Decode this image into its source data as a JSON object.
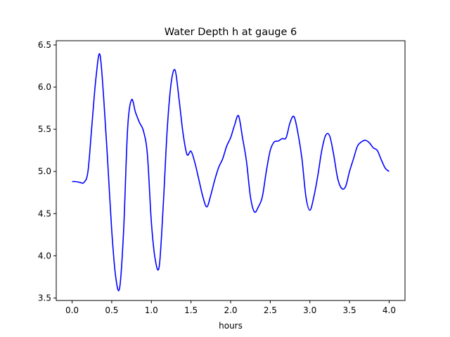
{
  "chart_data": {
    "type": "line",
    "title": "Water Depth h at gauge 6",
    "xlabel": "hours",
    "ylabel": "",
    "xlim": [
      -0.2,
      4.2
    ],
    "ylim": [
      3.47,
      6.55
    ],
    "grid": false,
    "x_ticks": [
      0.0,
      0.5,
      1.0,
      1.5,
      2.0,
      2.5,
      3.0,
      3.5,
      4.0
    ],
    "x_tick_labels": [
      "0.0",
      "0.5",
      "1.0",
      "1.5",
      "2.0",
      "2.5",
      "3.0",
      "3.5",
      "4.0"
    ],
    "y_ticks": [
      3.5,
      4.0,
      4.5,
      5.0,
      5.5,
      6.0,
      6.5
    ],
    "y_tick_labels": [
      "3.5",
      "4.0",
      "4.5",
      "5.0",
      "5.5",
      "6.0",
      "6.5"
    ],
    "series": [
      {
        "color": "#0000ff",
        "x": [
          0.0,
          0.05,
          0.1,
          0.15,
          0.2,
          0.25,
          0.3,
          0.35,
          0.4,
          0.45,
          0.5,
          0.55,
          0.6,
          0.65,
          0.7,
          0.75,
          0.8,
          0.85,
          0.9,
          0.95,
          1.0,
          1.05,
          1.1,
          1.15,
          1.2,
          1.25,
          1.3,
          1.35,
          1.4,
          1.45,
          1.5,
          1.55,
          1.6,
          1.65,
          1.7,
          1.75,
          1.8,
          1.85,
          1.9,
          1.95,
          2.0,
          2.05,
          2.1,
          2.15,
          2.2,
          2.25,
          2.3,
          2.35,
          2.4,
          2.45,
          2.5,
          2.55,
          2.6,
          2.65,
          2.7,
          2.75,
          2.8,
          2.85,
          2.9,
          2.95,
          3.0,
          3.05,
          3.1,
          3.15,
          3.2,
          3.25,
          3.3,
          3.35,
          3.4,
          3.45,
          3.5,
          3.55,
          3.6,
          3.65,
          3.7,
          3.75,
          3.8,
          3.85,
          3.9,
          3.95,
          4.0
        ],
        "y": [
          4.88,
          4.88,
          4.87,
          4.87,
          5.0,
          5.55,
          6.1,
          6.39,
          5.85,
          5.1,
          4.3,
          3.75,
          3.62,
          4.3,
          5.5,
          5.85,
          5.7,
          5.58,
          5.48,
          5.2,
          4.4,
          3.95,
          3.88,
          4.6,
          5.5,
          6.05,
          6.2,
          5.85,
          5.45,
          5.2,
          5.24,
          5.1,
          4.9,
          4.7,
          4.58,
          4.72,
          4.9,
          5.05,
          5.15,
          5.3,
          5.4,
          5.55,
          5.66,
          5.4,
          5.12,
          4.7,
          4.52,
          4.58,
          4.7,
          5.0,
          5.25,
          5.35,
          5.36,
          5.39,
          5.4,
          5.58,
          5.65,
          5.45,
          5.15,
          4.7,
          4.54,
          4.7,
          4.95,
          5.25,
          5.43,
          5.42,
          5.2,
          4.92,
          4.8,
          4.82,
          5.0,
          5.15,
          5.3,
          5.35,
          5.37,
          5.34,
          5.28,
          5.25,
          5.14,
          5.04,
          5.0
        ]
      }
    ]
  }
}
